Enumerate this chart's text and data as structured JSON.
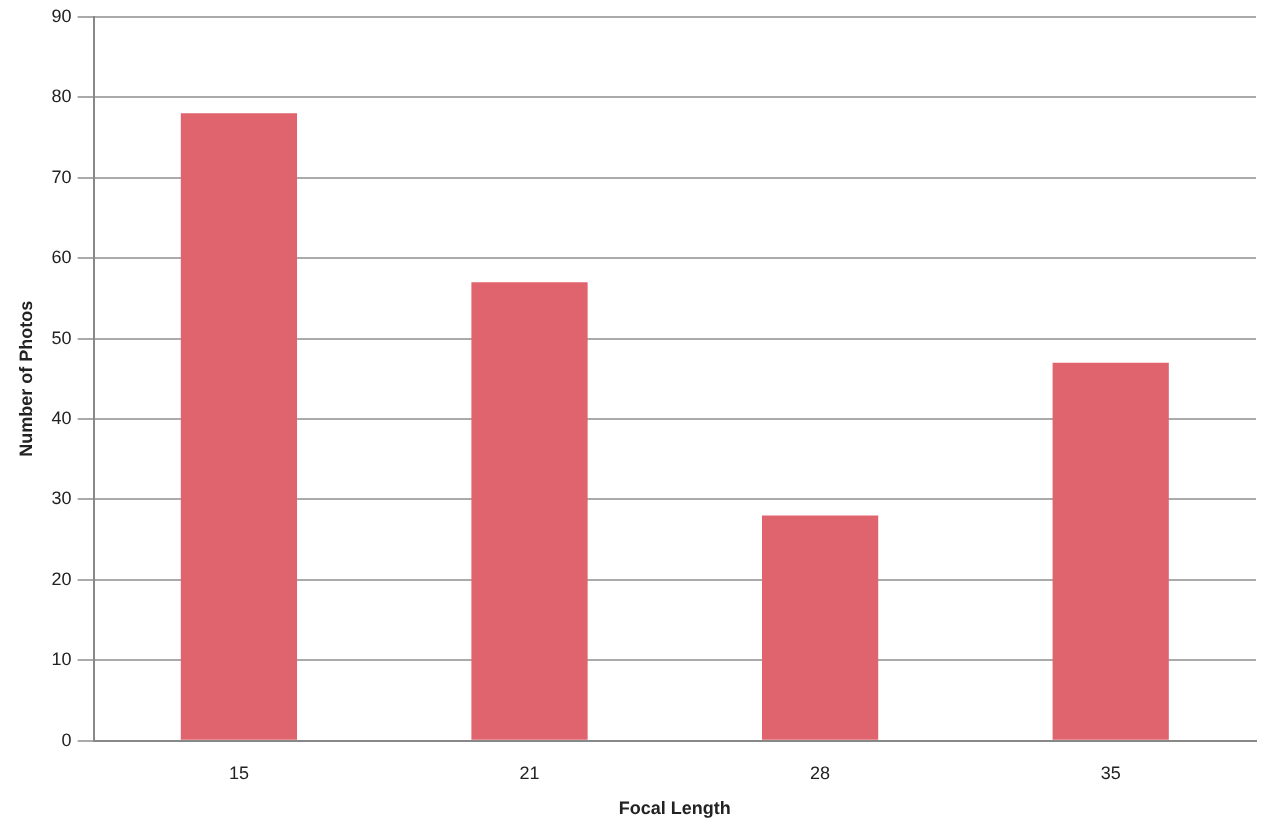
{
  "chart_data": {
    "type": "bar",
    "xlabel": "Focal Length",
    "ylabel": "Number of Photos",
    "categories": [
      "15",
      "21",
      "28",
      "35"
    ],
    "values": [
      78,
      57,
      28,
      47
    ],
    "color": "#e0646d",
    "ylim": [
      0,
      90
    ],
    "yticks": [
      0,
      10,
      20,
      30,
      40,
      50,
      60,
      70,
      80,
      90
    ],
    "grid": "y"
  }
}
